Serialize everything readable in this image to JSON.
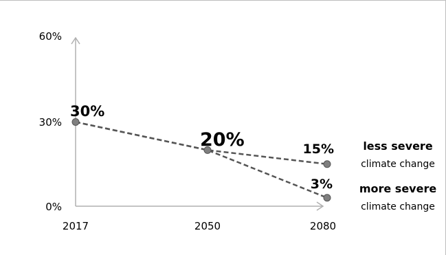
{
  "chart_data": {
    "type": "line",
    "x": [
      "2017",
      "2050",
      "2080"
    ],
    "ylim": [
      0,
      60
    ],
    "y_ticks": [
      "0%",
      "30%",
      "60%"
    ],
    "grid": false,
    "series": [
      {
        "name": "less severe climate change",
        "x": [
          "2017",
          "2050",
          "2080"
        ],
        "values": [
          30,
          20,
          15
        ],
        "labels": [
          "30%",
          "20%",
          "15%"
        ]
      },
      {
        "name": "more severe climate change",
        "x": [
          "2017",
          "2050",
          "2080"
        ],
        "values": [
          30,
          20,
          3
        ],
        "labels": [
          "30%",
          "20%",
          "3%"
        ]
      }
    ],
    "annotations": [
      {
        "title": "less severe",
        "subtitle": "climate change"
      },
      {
        "title": "more severe",
        "subtitle": "climate change"
      }
    ]
  }
}
